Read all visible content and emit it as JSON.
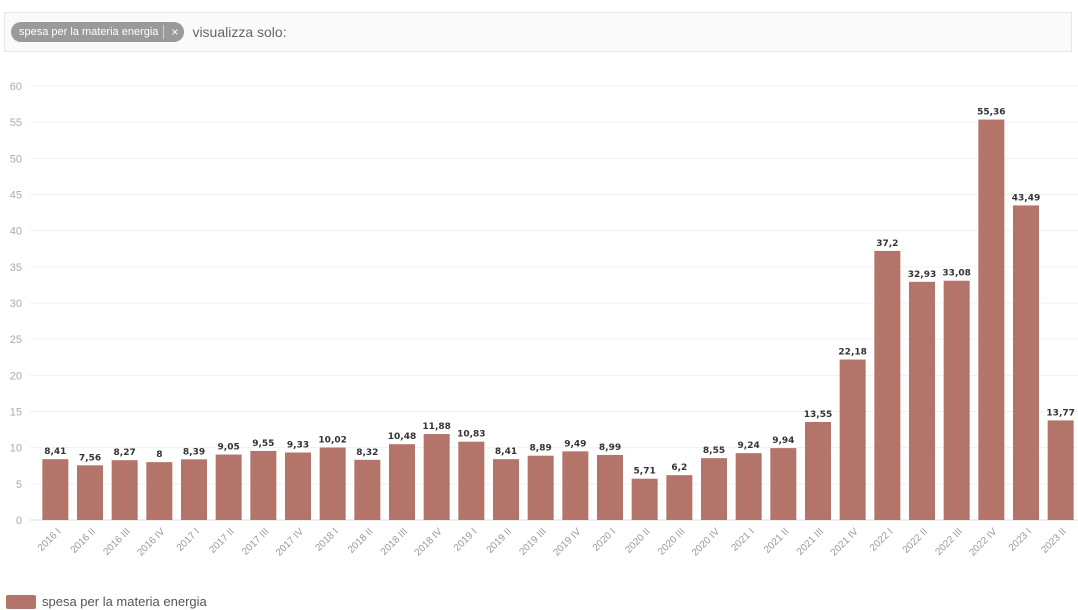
{
  "filter": {
    "chip_label": "spesa per la materia energia",
    "chip_close": "×",
    "show_only_label": "visualizza solo:"
  },
  "legend": {
    "label": "spesa per la materia energia",
    "color": "#b3756a"
  },
  "chart_data": {
    "type": "bar",
    "title": "",
    "xlabel": "",
    "ylabel": "",
    "ylim": [
      0,
      60
    ],
    "yticks": [
      0,
      5,
      10,
      15,
      20,
      25,
      30,
      35,
      40,
      45,
      50,
      55,
      60
    ],
    "grid": true,
    "legend_position": "bottom-left",
    "bar_color": "#b3756a",
    "categories": [
      "2016 I",
      "2016 II",
      "2016 III",
      "2016 IV",
      "2017 I",
      "2017 II",
      "2017 III",
      "2017 IV",
      "2018 I",
      "2018 II",
      "2018 III",
      "2018 IV",
      "2019 I",
      "2019 II",
      "2019 III",
      "2019 IV",
      "2020 I",
      "2020 II",
      "2020 III",
      "2020 IV",
      "2021 I",
      "2021 II",
      "2021 III",
      "2021 IV",
      "2022 I",
      "2022 II",
      "2022 III",
      "2022 IV",
      "2023 I",
      "2023 II"
    ],
    "series": [
      {
        "name": "spesa per la materia energia",
        "values": [
          8.41,
          7.56,
          8.27,
          8,
          8.39,
          9.05,
          9.55,
          9.33,
          10.02,
          8.32,
          10.48,
          11.88,
          10.83,
          8.41,
          8.89,
          9.49,
          8.99,
          5.71,
          6.2,
          8.55,
          9.24,
          9.94,
          13.55,
          22.18,
          37.2,
          32.93,
          33.08,
          55.36,
          43.49,
          13.77
        ],
        "labels": [
          "8,41",
          "7,56",
          "8,27",
          "8",
          "8,39",
          "9,05",
          "9,55",
          "9,33",
          "10,02",
          "8,32",
          "10,48",
          "11,88",
          "10,83",
          "8,41",
          "8,89",
          "9,49",
          "8,99",
          "5,71",
          "6,2",
          "8,55",
          "9,24",
          "9,94",
          "13,55",
          "22,18",
          "37,2",
          "32,93",
          "33,08",
          "55,36",
          "43,49",
          "13,77"
        ]
      }
    ]
  }
}
